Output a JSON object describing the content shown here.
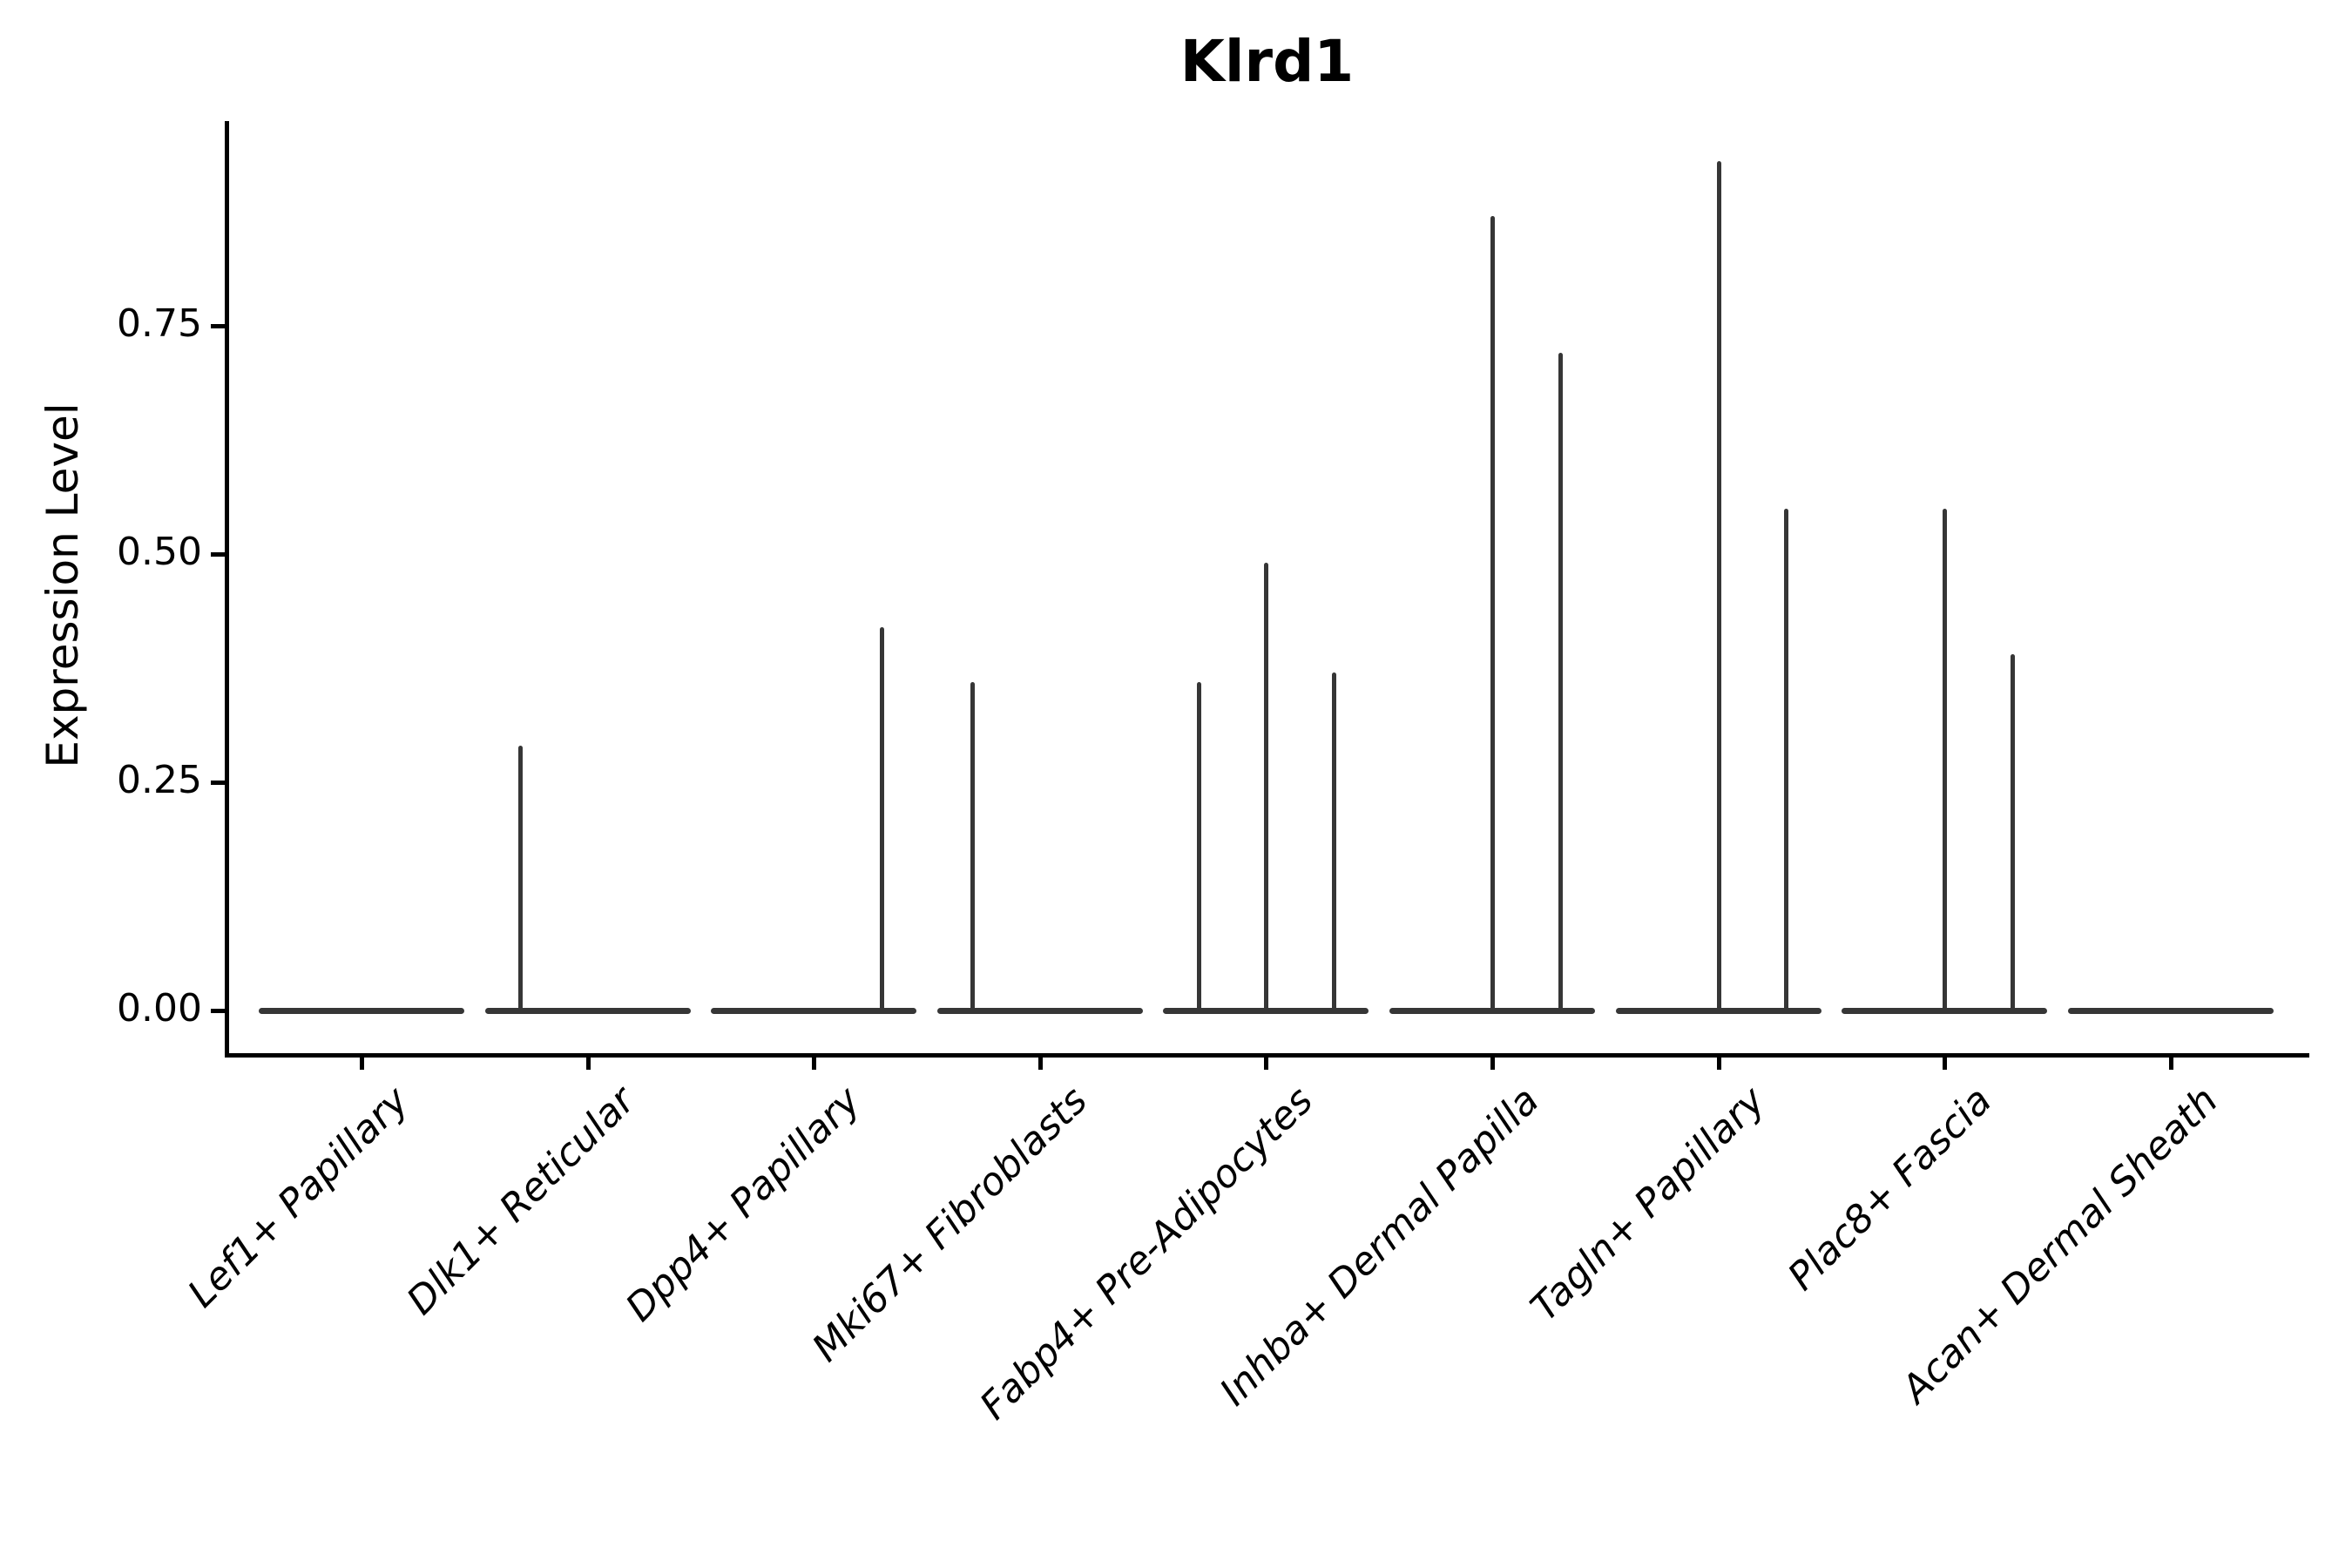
{
  "chart_data": {
    "type": "violin",
    "title": "Klrd1",
    "xlabel": "",
    "ylabel": "Expression Level",
    "ylim": [
      0,
      0.975
    ],
    "grid": false,
    "legend": null,
    "yticks": [
      {
        "value": 0.0,
        "label": "0.00"
      },
      {
        "value": 0.25,
        "label": "0.25"
      },
      {
        "value": 0.5,
        "label": "0.50"
      },
      {
        "value": 0.75,
        "label": "0.75"
      }
    ],
    "categories": [
      "Lef1+ Papillary",
      "Dlk1+ Reticular",
      "Dpp4+ Papillary",
      "Mki67+ Fibroblasts",
      "Fabp4+ Pre-Adipocytes",
      "Inhba+ Dermal Papilla",
      "Tagln+ Papillary",
      "Plac8+ Fascia",
      "Acan+ Dermal Sheath"
    ],
    "violins": [
      {
        "label": "Lef1+ Papillary",
        "baseline": 0,
        "spikes": []
      },
      {
        "label": "Dlk1+ Reticular",
        "baseline": 0,
        "spikes": [
          {
            "offset": -0.3,
            "peak": 0.29
          }
        ]
      },
      {
        "label": "Dpp4+ Papillary",
        "baseline": 0,
        "spikes": [
          {
            "offset": 0.3,
            "peak": 0.42
          }
        ]
      },
      {
        "label": "Mki67+ Fibroblasts",
        "baseline": 0,
        "spikes": [
          {
            "offset": -0.3,
            "peak": 0.36
          }
        ]
      },
      {
        "label": "Fabp4+ Pre-Adipocytes",
        "baseline": 0,
        "spikes": [
          {
            "offset": -0.3,
            "peak": 0.36
          },
          {
            "offset": 0,
            "peak": 0.49
          },
          {
            "offset": 0.3,
            "peak": 0.37
          }
        ]
      },
      {
        "label": "Inhba+ Dermal Papilla",
        "baseline": 0,
        "spikes": [
          {
            "offset": 0,
            "peak": 0.87
          },
          {
            "offset": 0.3,
            "peak": 0.72
          }
        ]
      },
      {
        "label": "Tagln+ Papillary",
        "baseline": 0,
        "spikes": [
          {
            "offset": 0,
            "peak": 0.93
          },
          {
            "offset": 0.3,
            "peak": 0.55
          }
        ]
      },
      {
        "label": "Plac8+ Fascia",
        "baseline": 0,
        "spikes": [
          {
            "offset": 0,
            "peak": 0.55
          },
          {
            "offset": 0.3,
            "peak": 0.39
          }
        ]
      },
      {
        "label": "Acan+ Dermal Sheath",
        "baseline": 0,
        "spikes": []
      }
    ]
  },
  "colors": {
    "axis": "#000000",
    "violin": "#363636",
    "text": "#000000",
    "background": "#ffffff"
  }
}
